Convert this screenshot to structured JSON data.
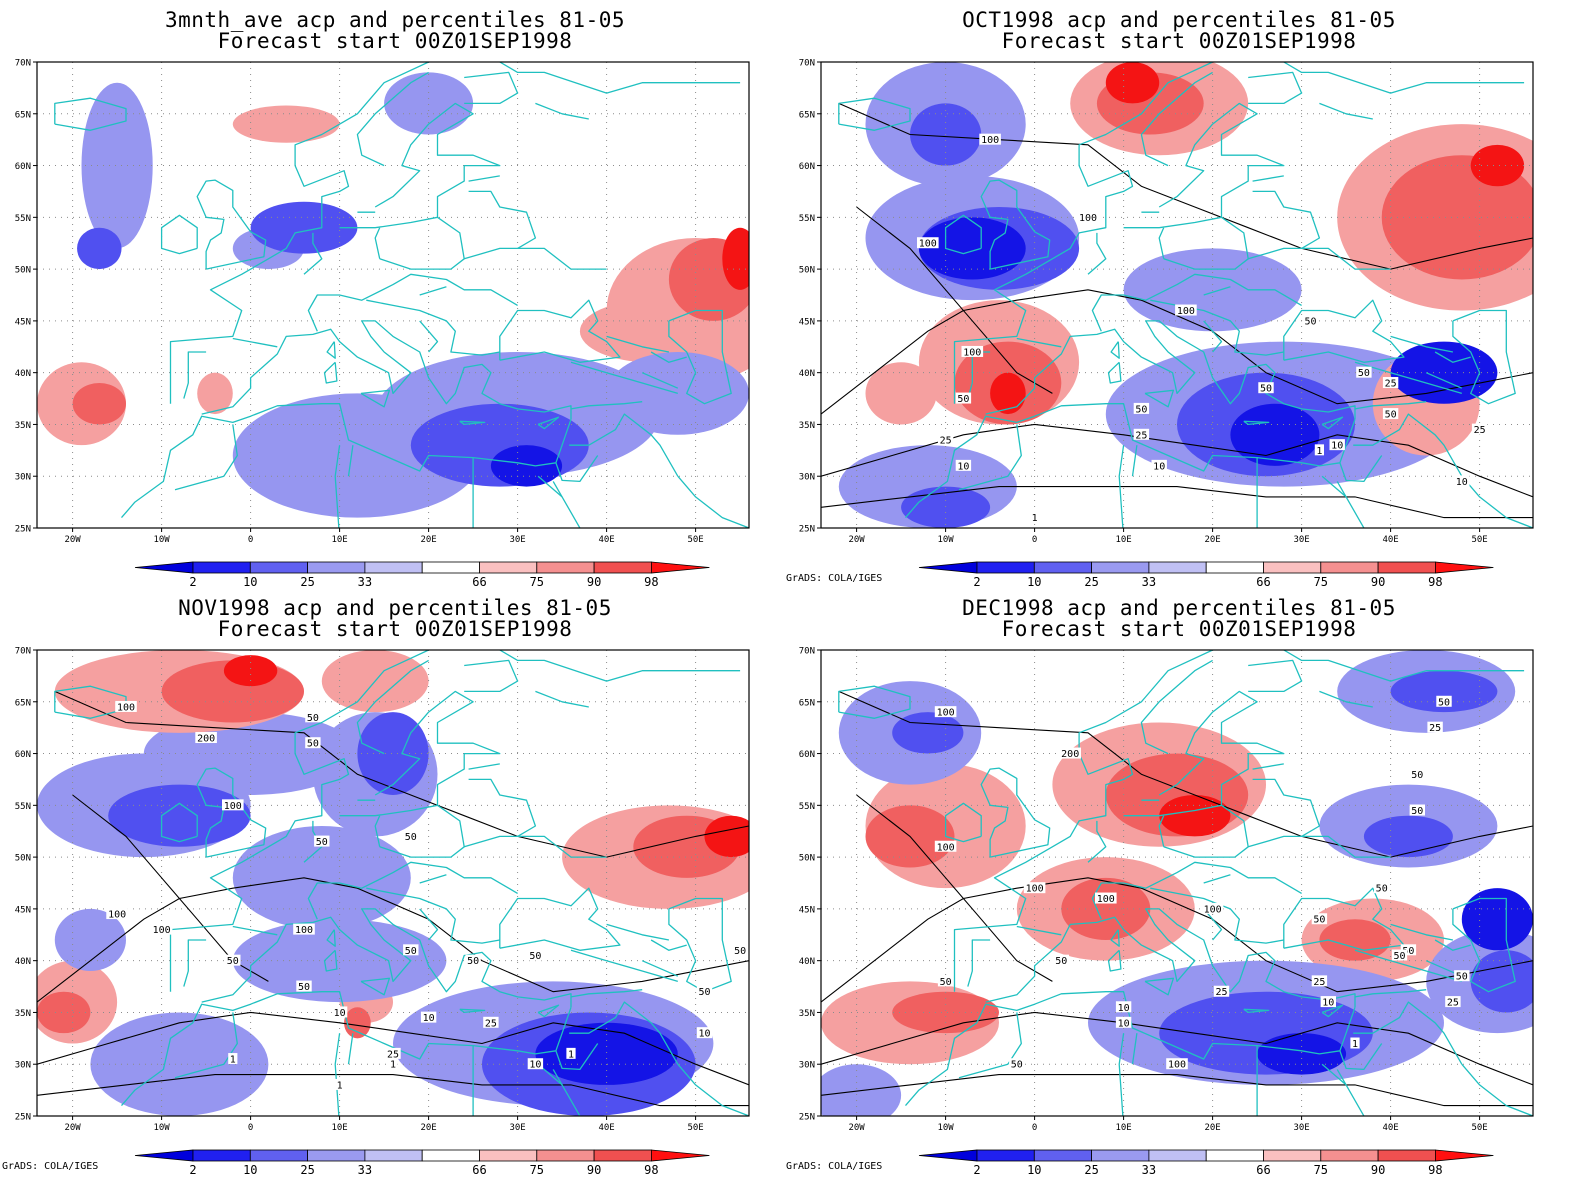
{
  "panels": [
    {
      "id": "p1",
      "title_line1": "3mnth_ave acp and percentiles 81-05",
      "title_line2": "Forecast start 00Z01SEP1998",
      "credit": "",
      "contour_labels": []
    },
    {
      "id": "p2",
      "title_line1": "OCT1998 acp and percentiles 81-05",
      "title_line2": "Forecast start 00Z01SEP1998",
      "credit": "GrADS: COLA/IGES",
      "contour_labels": [
        "100",
        "100",
        "100",
        "100",
        "100",
        "50",
        "50",
        "50",
        "50",
        "50",
        "50",
        "25",
        "25",
        "25",
        "25",
        "10",
        "10",
        "10",
        "10",
        "1",
        "1"
      ]
    },
    {
      "id": "p3",
      "title_line1": "NOV1998 acp and percentiles 81-05",
      "title_line2": "Forecast start 00Z01SEP1998",
      "credit": "GrADS: COLA/IGES",
      "contour_labels": [
        "100",
        "200",
        "50",
        "50",
        "100",
        "50",
        "50",
        "100",
        "100",
        "100",
        "50",
        "50",
        "50",
        "50",
        "50",
        "10",
        "10",
        "25",
        "25",
        "10",
        "1",
        "1",
        "1",
        "1",
        "10",
        "50",
        "50"
      ]
    },
    {
      "id": "p4",
      "title_line1": "DEC1998 acp and percentiles 81-05",
      "title_line2": "Forecast start 00Z01SEP1998",
      "credit": "GrADS: COLA/IGES",
      "contour_labels": [
        "100",
        "200",
        "100",
        "100",
        "100",
        "100",
        "50",
        "50",
        "50",
        "50",
        "50",
        "50",
        "50",
        "50",
        "25",
        "25",
        "25",
        "10",
        "10",
        "10",
        "1",
        "100",
        "50",
        "50",
        "25",
        "50"
      ]
    }
  ],
  "axes": {
    "lat_labels": [
      "70N",
      "65N",
      "60N",
      "55N",
      "50N",
      "45N",
      "40N",
      "35N",
      "30N",
      "25N"
    ],
    "lon_labels": [
      "20W",
      "10W",
      "0",
      "10E",
      "20E",
      "30E",
      "40E",
      "50E"
    ]
  },
  "colorbar": {
    "labels": [
      "2",
      "10",
      "25",
      "33",
      "66",
      "75",
      "90",
      "98"
    ],
    "colors": [
      "#0000dc",
      "#2020f0",
      "#6060f0",
      "#9a9af0",
      "#c0c0f4",
      "#ffffff",
      "#fac0c0",
      "#f59090",
      "#f05050",
      "#ff1010"
    ]
  },
  "palette": {
    "coast": "#20c0c0",
    "contour": "#000000",
    "grid": "#8c8c8c",
    "blue_dark": "#1414e6",
    "blue_mid": "#5050f0",
    "blue_light": "#9696f0",
    "red_light": "#f5a0a0",
    "red_mid": "#f06060",
    "red_dark": "#f41414"
  }
}
